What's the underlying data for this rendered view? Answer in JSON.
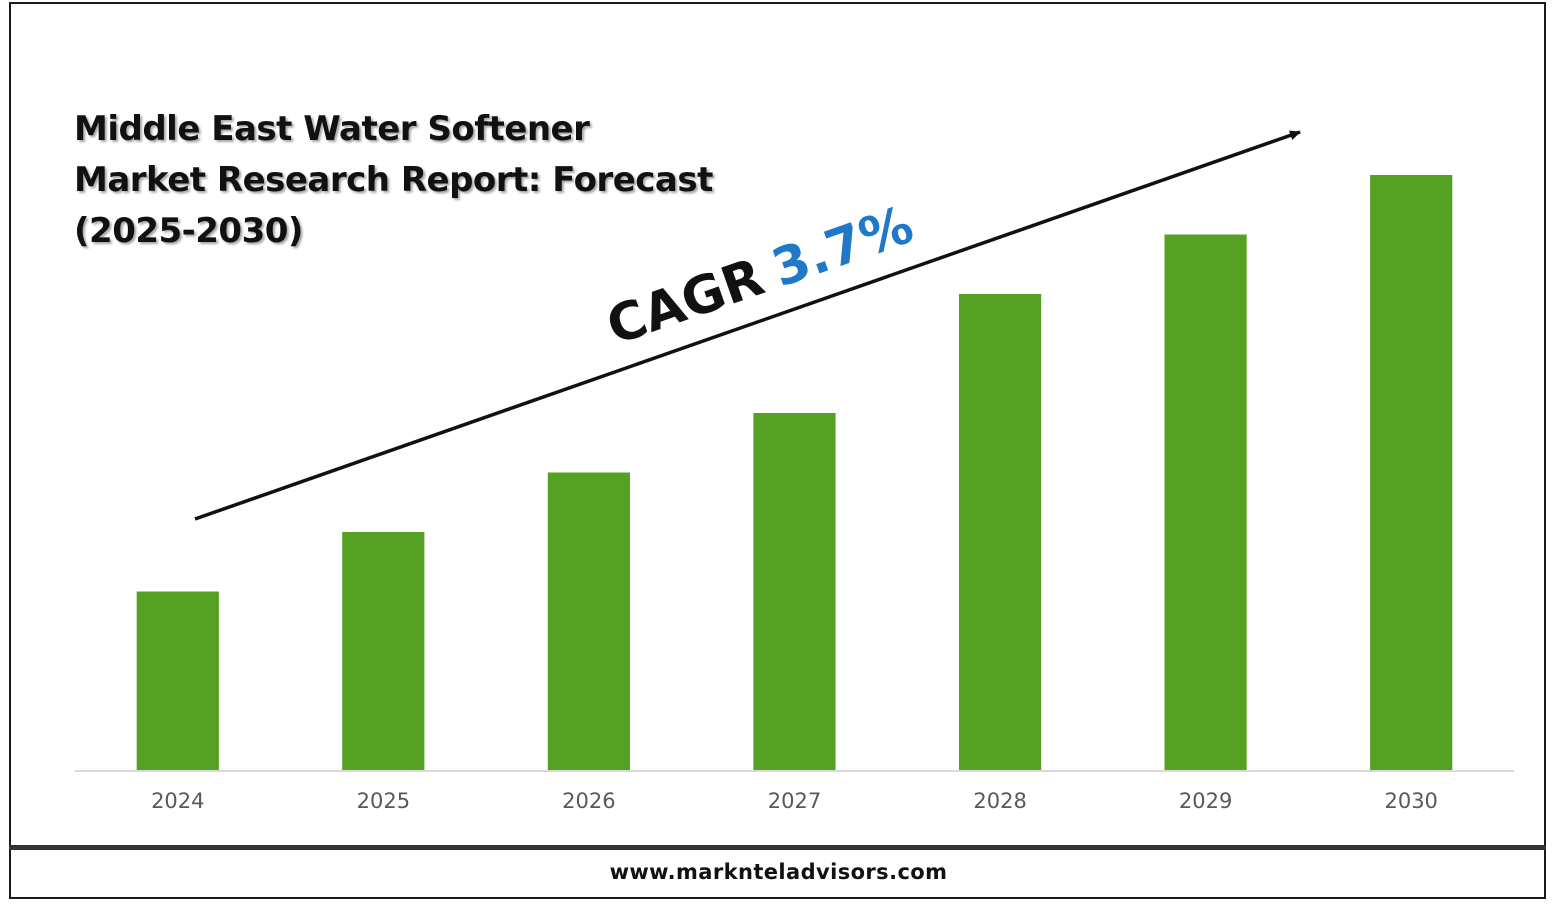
{
  "title_lines": [
    "Middle East Water Softener",
    "Market Research Report: Forecast",
    "(2025-2030)"
  ],
  "cagr": {
    "label": "CAGR",
    "value": "3.7%",
    "label_color": "#111111",
    "value_color": "#1f78c8"
  },
  "footer": {
    "url": "www.marknteladvisors.com"
  },
  "colors": {
    "bar": "#55a124",
    "axis": "#d9d9d9",
    "tick_text": "#595959",
    "arrow": "#111111"
  },
  "chart_data": {
    "type": "bar",
    "categories": [
      "2024",
      "2025",
      "2026",
      "2027",
      "2028",
      "2029",
      "2030"
    ],
    "values": [
      30,
      40,
      50,
      60,
      80,
      90,
      100
    ],
    "title": "Middle East Water Softener Market Research Report: Forecast (2025-2030)",
    "xlabel": "",
    "ylabel": "",
    "ylim": [
      0,
      100
    ],
    "y_axis_visible": false,
    "grid": false,
    "legend": "none",
    "annotations": [
      {
        "text": "CAGR 3.7%",
        "type": "trend-arrow"
      }
    ]
  }
}
